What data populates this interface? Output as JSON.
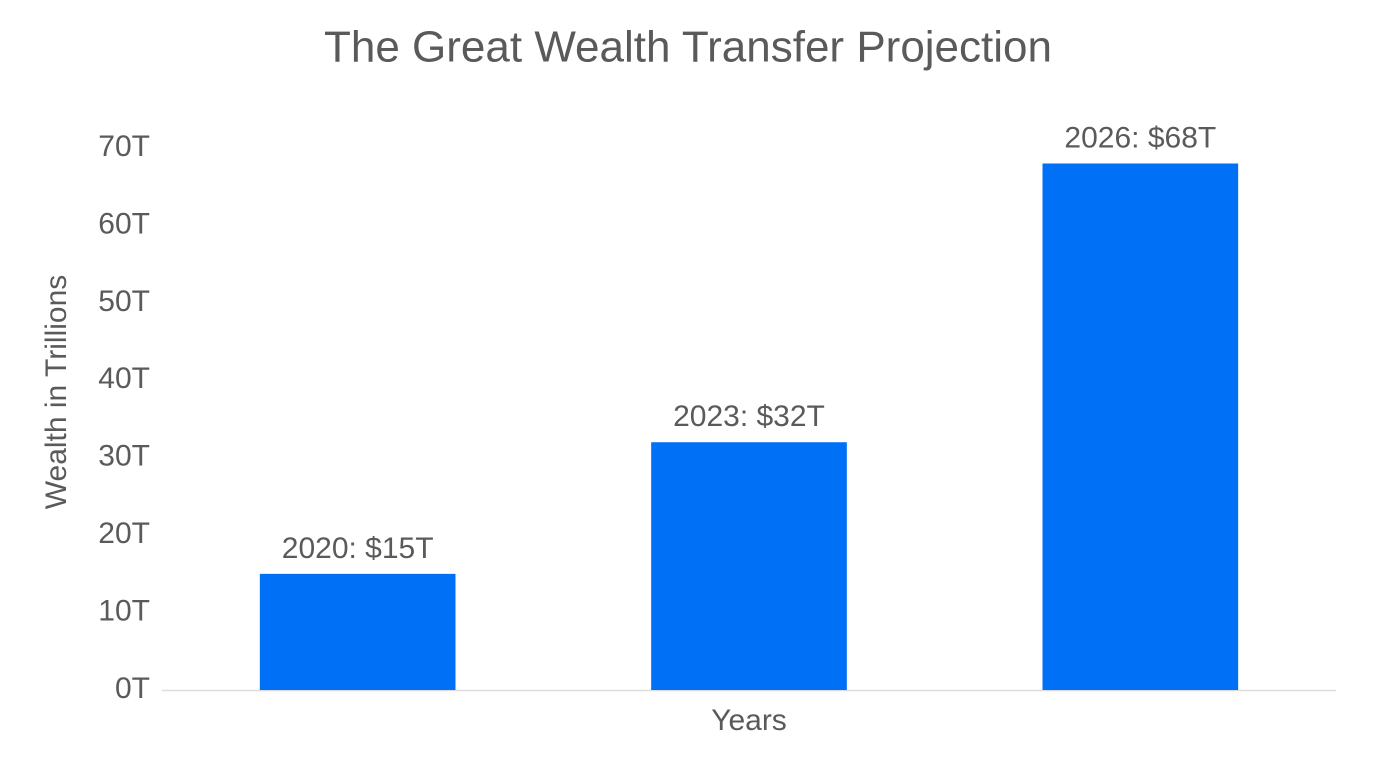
{
  "chart_data": {
    "type": "bar",
    "title": "The Great Wealth Transfer Projection",
    "x_label": "Years",
    "y_label": "Wealth in Trillions",
    "categories": [
      null,
      null,
      null
    ],
    "values": [
      15,
      32,
      68
    ],
    "value_labels": [
      "2020: $15T",
      "2023: $32T",
      "2026: $68T"
    ],
    "color": "#0070f6",
    "ylim": [
      0,
      70
    ],
    "yticks": [
      {
        "value": 0,
        "label": "0T"
      },
      {
        "value": 10,
        "label": "10T"
      },
      {
        "value": 20,
        "label": "20T"
      },
      {
        "value": 30,
        "label": "30T"
      },
      {
        "value": 40,
        "label": "40T"
      },
      {
        "value": 50,
        "label": "50T"
      },
      {
        "value": 60,
        "label": "60T"
      },
      {
        "value": 70,
        "label": "70T"
      }
    ],
    "grid": false
  }
}
